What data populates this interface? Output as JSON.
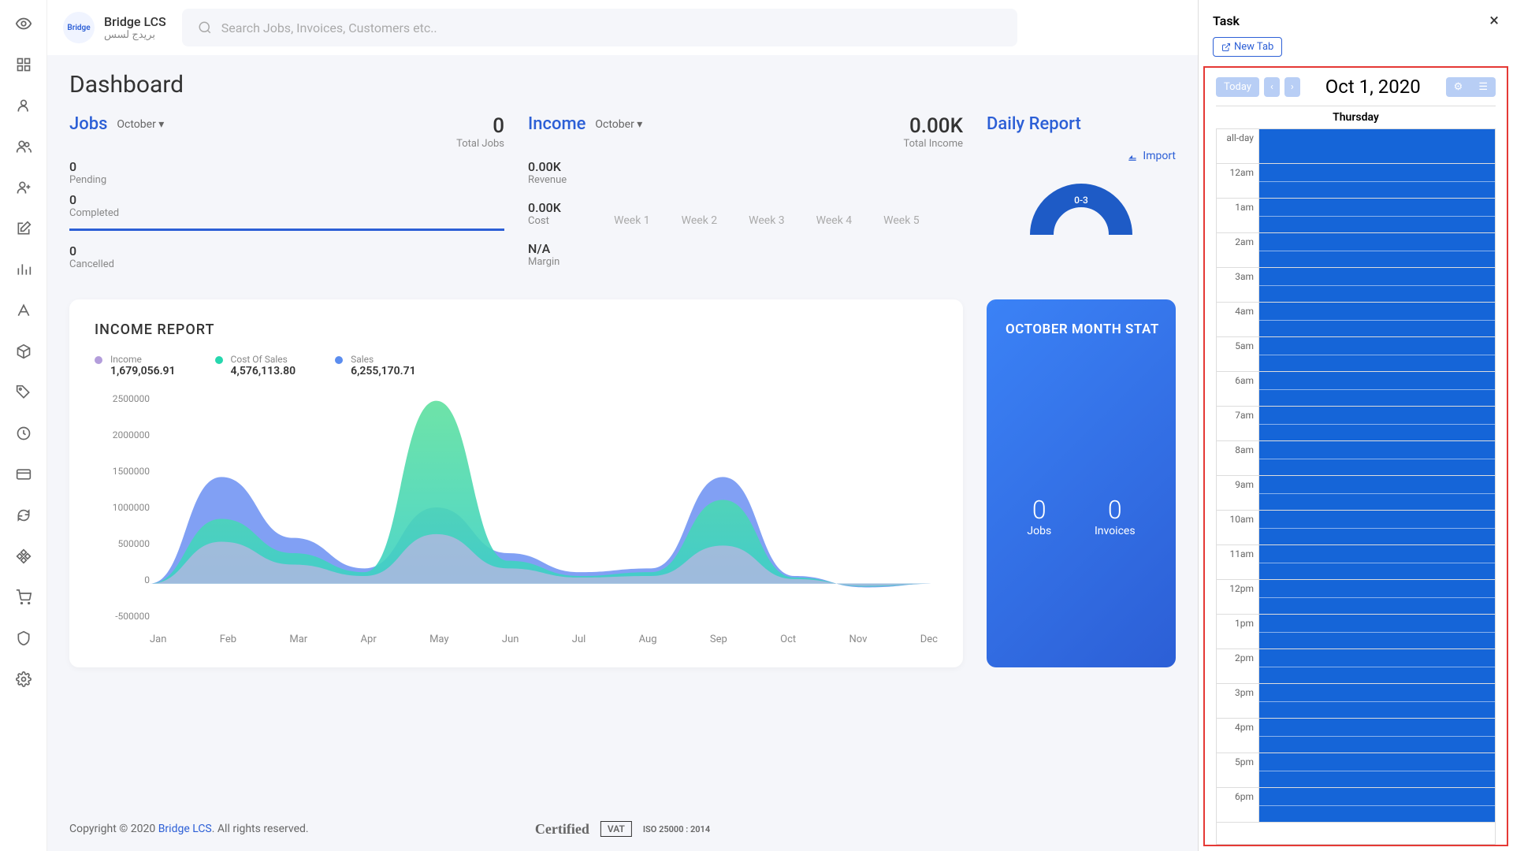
{
  "brand": {
    "name": "Bridge LCS",
    "subtitle": "بريدج لسس",
    "logo_text": "Bridge"
  },
  "search": {
    "placeholder": "Search Jobs, Invoices, Customers etc.."
  },
  "page_title": "Dashboard",
  "jobs": {
    "label": "Jobs",
    "period": "October ▾",
    "total_num": "0",
    "total_label": "Total Jobs",
    "items": [
      {
        "num": "0",
        "label": "Pending"
      },
      {
        "num": "0",
        "label": "Completed"
      },
      {
        "num": "0",
        "label": "Cancelled"
      }
    ]
  },
  "income": {
    "label": "Income",
    "period": "October ▾",
    "total_num": "0.00K",
    "total_label": "Total Income",
    "items": [
      {
        "num": "0.00K",
        "label": "Revenue"
      },
      {
        "num": "0.00K",
        "label": "Cost"
      },
      {
        "num": "N/A",
        "label": "Margin"
      }
    ],
    "weeks": [
      "Week 1",
      "Week 2",
      "Week 3",
      "Week 4",
      "Week 5"
    ]
  },
  "daily": {
    "title": "Daily Report",
    "import_label": "Import",
    "donut_label": "0-3",
    "donut_color": "#1e5bc6"
  },
  "income_report": {
    "title": "INCOME REPORT",
    "legend": [
      {
        "label": "Income",
        "value": "1,679,056.91",
        "color": "#b39ddb"
      },
      {
        "label": "Cost Of Sales",
        "value": "4,576,113.80",
        "color": "#26d7ae"
      },
      {
        "label": "Sales",
        "value": "6,255,170.71",
        "color": "#5b8def"
      }
    ],
    "y_ticks": [
      "2500000",
      "2000000",
      "1500000",
      "1000000",
      "500000",
      "0",
      "-500000"
    ],
    "x_labels": [
      "Jan",
      "Feb",
      "Mar",
      "Apr",
      "May",
      "Jun",
      "Jul",
      "Aug",
      "Sep",
      "Oct",
      "Nov",
      "Dec"
    ],
    "ylim": [
      -500000,
      2500000
    ],
    "series": {
      "sales": [
        0,
        1400000,
        600000,
        200000,
        1000000,
        400000,
        150000,
        200000,
        1400000,
        100000,
        -50000,
        0
      ],
      "cost": [
        0,
        850000,
        400000,
        150000,
        2400000,
        300000,
        100000,
        150000,
        1100000,
        80000,
        -40000,
        0
      ],
      "income": [
        0,
        550000,
        250000,
        100000,
        650000,
        200000,
        80000,
        100000,
        500000,
        60000,
        -30000,
        0
      ]
    },
    "colors": {
      "sales_fill": "#6b8ff2",
      "cost_fill_top": "#5ee09e",
      "cost_fill_bot": "#3bd1c5",
      "income_fill": "#c5b3e6"
    }
  },
  "month_card": {
    "title": "OCTOBER MONTH STAT",
    "stats": [
      {
        "num": "0",
        "label": "Jobs"
      },
      {
        "num": "0",
        "label": "Invoices"
      }
    ]
  },
  "footer": {
    "prefix": "Copyright © 2020 ",
    "link": "Bridge LCS",
    "suffix": ". All rights reserved.",
    "certified": "Certified",
    "vat": "VAT",
    "iso": "ISO 25000 : 2014"
  },
  "task": {
    "title": "Task",
    "newtab": "New Tab",
    "today": "Today",
    "date": "Oct 1, 2020",
    "day_header": "Thursday",
    "hours": [
      "all-day",
      "12am",
      "1am",
      "2am",
      "3am",
      "4am",
      "5am",
      "6am",
      "7am",
      "8am",
      "9am",
      "10am",
      "11am",
      "12pm",
      "1pm",
      "2pm",
      "3pm",
      "4pm",
      "5pm",
      "6pm"
    ]
  },
  "sidebar_icons": [
    "eye-icon",
    "apps-icon",
    "user-icon",
    "users-icon",
    "user-plus-icon",
    "edit-icon",
    "chart-icon",
    "font-icon",
    "box-icon",
    "tag-icon",
    "clock-icon",
    "card-icon",
    "refresh-icon",
    "diamond-icon",
    "cart-icon",
    "shield-icon",
    "settings-icon"
  ]
}
